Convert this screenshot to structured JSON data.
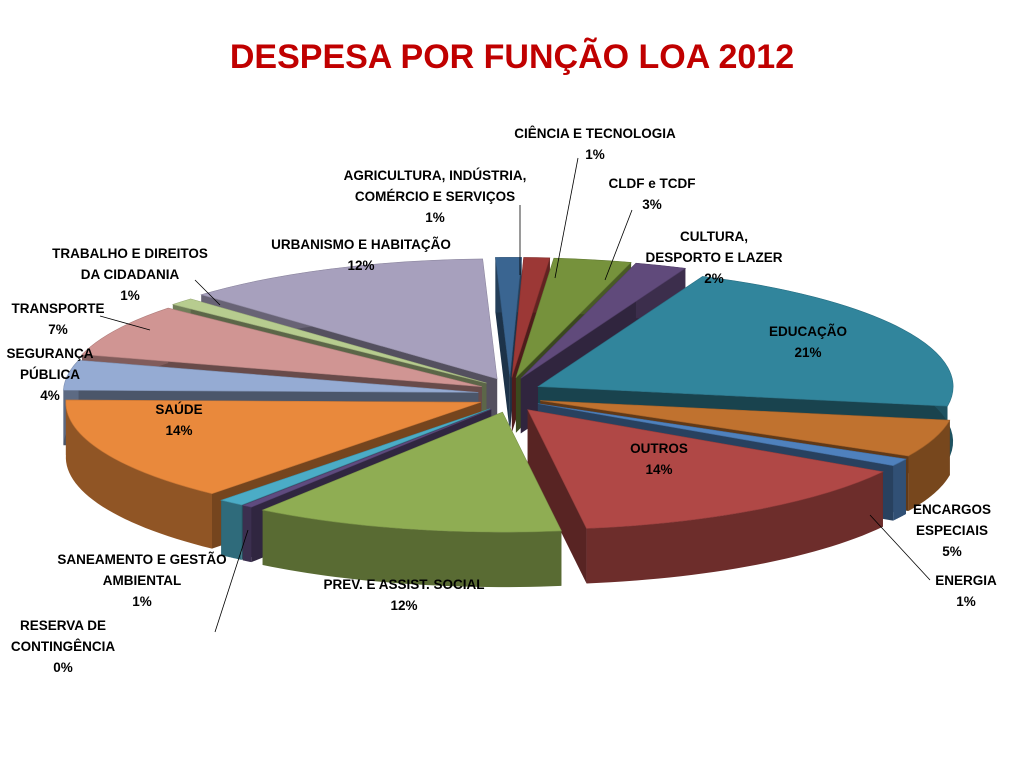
{
  "title": "DESPESA POR FUNÇÃO LOA 2012",
  "chart_data": {
    "type": "pie",
    "title": "DESPESA POR FUNÇÃO LOA 2012",
    "style": "3d-exploded",
    "grid": false,
    "legend": "none",
    "slices": [
      {
        "lines": [
          "AGRICULTURA, INDÚSTRIA,",
          "COMÉRCIO E SERVIÇOS"
        ],
        "pct_label": "1%",
        "value": 1,
        "color": "#3a6591"
      },
      {
        "lines": [
          "CIÊNCIA E TECNOLOGIA"
        ],
        "pct_label": "1%",
        "value": 1,
        "color": "#9c3836"
      },
      {
        "lines": [
          "CLDF e TCDF"
        ],
        "pct_label": "3%",
        "value": 3,
        "color": "#76923c"
      },
      {
        "lines": [
          "CULTURA,",
          "DESPORTO E LAZER"
        ],
        "pct_label": "2%",
        "value": 2,
        "color": "#604a7b"
      },
      {
        "lines": [
          "EDUCAÇÃO"
        ],
        "pct_label": "21%",
        "value": 21,
        "color": "#31859c"
      },
      {
        "lines": [
          "ENCARGOS",
          "ESPECIAIS"
        ],
        "pct_label": "5%",
        "value": 5,
        "color": "#c0722f"
      },
      {
        "lines": [
          "ENERGIA"
        ],
        "pct_label": "1%",
        "value": 1,
        "color": "#4f81bd"
      },
      {
        "lines": [
          "OUTROS"
        ],
        "pct_label": "14%",
        "value": 14,
        "color": "#b04846"
      },
      {
        "lines": [
          "PREV. E ASSIST. SOCIAL"
        ],
        "pct_label": "12%",
        "value": 12,
        "color": "#8fad53"
      },
      {
        "lines": [
          "RESERVA DE",
          "CONTINGÊNCIA"
        ],
        "pct_label": "0%",
        "value": 0.4,
        "color": "#5f4b7f"
      },
      {
        "lines": [
          "SANEAMENTO E GESTÃO",
          "AMBIENTAL"
        ],
        "pct_label": "1%",
        "value": 1,
        "color": "#4bacc6"
      },
      {
        "lines": [
          "SAÚDE"
        ],
        "pct_label": "14%",
        "value": 14,
        "color": "#e9893c"
      },
      {
        "lines": [
          "SEGURANÇA",
          "PÚBLICA"
        ],
        "pct_label": "4%",
        "value": 4,
        "color": "#95abd3"
      },
      {
        "lines": [
          "TRANSPORTE"
        ],
        "pct_label": "7%",
        "value": 7,
        "color": "#d09593"
      },
      {
        "lines": [
          "TRABALHO E DIREITOS",
          "DA CIDADANIA"
        ],
        "pct_label": "1%",
        "value": 1,
        "color": "#b7cc8f"
      },
      {
        "lines": [
          "URBANISMO E HABITAÇÃO"
        ],
        "pct_label": "12%",
        "value": 12,
        "color": "#a7a0bd"
      }
    ]
  }
}
